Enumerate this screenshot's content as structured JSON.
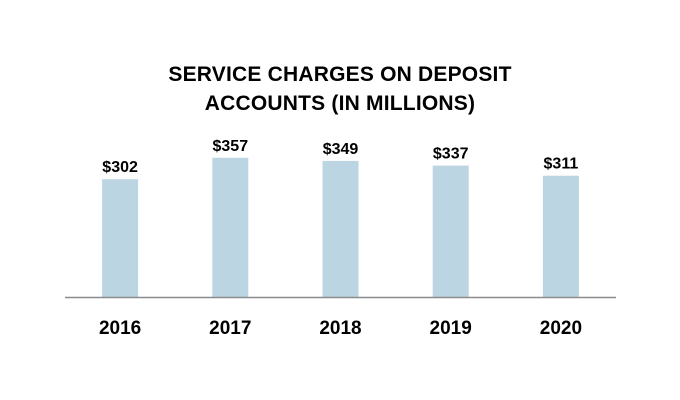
{
  "chart_data": {
    "type": "bar",
    "title_lines": [
      "SERVICE CHARGES ON DEPOSIT",
      "ACCOUNTS (IN MILLIONS)"
    ],
    "categories": [
      "2016",
      "2017",
      "2018",
      "2019",
      "2020"
    ],
    "values": [
      302,
      357,
      349,
      337,
      311
    ],
    "value_labels": [
      "$302",
      "$357",
      "$349",
      "$337",
      "$311"
    ],
    "xlabel": "",
    "ylabel": "",
    "ylim": [
      0,
      400
    ],
    "grid": false,
    "legend": "none",
    "colors": {
      "bar": "#bcd5e2",
      "axis": "#8c8c8c"
    }
  }
}
